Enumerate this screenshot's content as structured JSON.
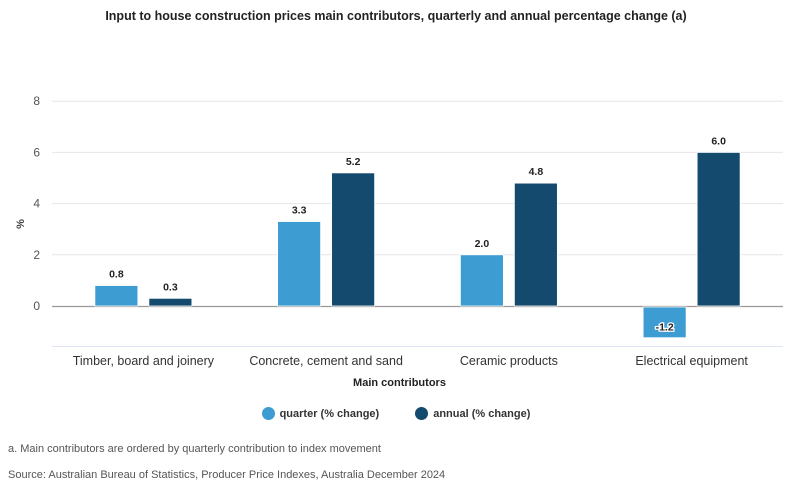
{
  "chart_data": {
    "type": "bar",
    "title": "Input to house construction prices main contributors, quarterly and annual percentage change (a)",
    "xlabel": "Main contributors",
    "ylabel": "%",
    "ylim": [
      -1.5,
      8
    ],
    "yticks": [
      0,
      2,
      4,
      6,
      8
    ],
    "grid": true,
    "legend_position": "bottom-center",
    "categories": [
      "Timber, board and joinery",
      "Concrete, cement and sand",
      "Ceramic products",
      "Electrical equipment"
    ],
    "series": [
      {
        "name": "quarter (% change)",
        "color": "#3d9dd3",
        "values": [
          0.8,
          3.3,
          2.0,
          -1.2
        ]
      },
      {
        "name": "annual (% change)",
        "color": "#144a6e",
        "values": [
          0.3,
          5.2,
          4.8,
          6.0
        ]
      }
    ]
  },
  "footnotes": {
    "note": "a. Main contributors are ordered by quarterly contribution to index movement",
    "source": "Source: Australian Bureau of Statistics, Producer Price Indexes, Australia December 2024"
  }
}
